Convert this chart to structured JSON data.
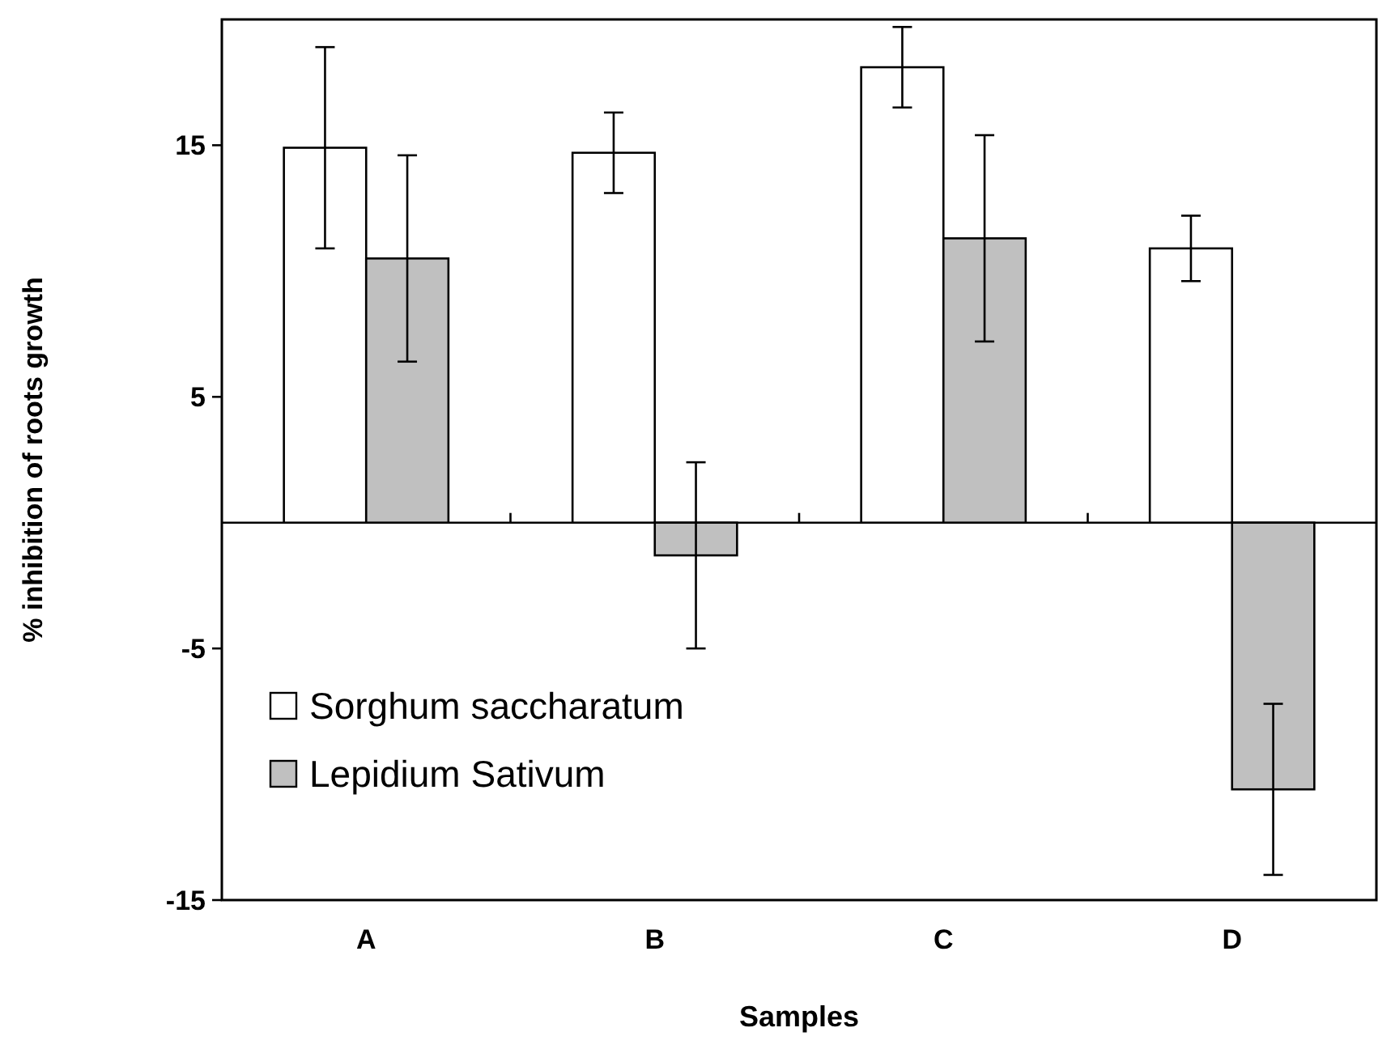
{
  "chart_data": {
    "type": "bar",
    "xlabel": "Samples",
    "ylabel": "% inhibition of roots growth",
    "categories": [
      "A",
      "B",
      "C",
      "D"
    ],
    "series": [
      {
        "name": "Sorghum saccharatum",
        "color": "#ffffff",
        "values": [
          14.9,
          14.7,
          18.1,
          10.9
        ],
        "errors": [
          4.0,
          1.6,
          1.6,
          1.3
        ]
      },
      {
        "name": "Lepidium Sativum",
        "color": "#c0c0c0",
        "values": [
          10.5,
          -1.3,
          11.3,
          -10.6
        ],
        "errors": [
          4.1,
          3.7,
          4.1,
          3.4
        ]
      }
    ],
    "ylim": [
      -15,
      20
    ],
    "yticks": [
      -15,
      -5,
      5,
      15
    ],
    "grid": false,
    "legend": "bottom left"
  }
}
